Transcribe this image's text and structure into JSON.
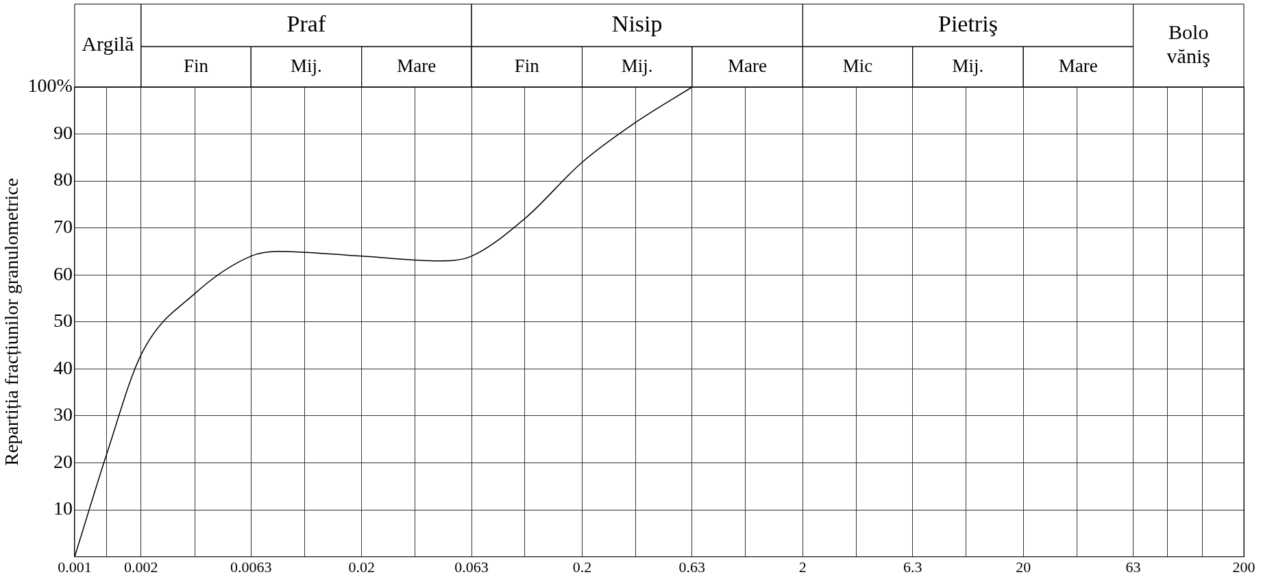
{
  "chart_data": {
    "type": "line",
    "ylabel": "Repartiția fracțiunilor granulometrice",
    "x": [
      0.001,
      0.0014,
      0.002,
      0.0035,
      0.0063,
      0.0083,
      0.02,
      0.045,
      0.063,
      0.11,
      0.2,
      0.35,
      0.63
    ],
    "values": [
      0,
      22,
      43,
      56,
      64,
      65,
      64,
      63,
      64,
      72,
      84,
      92.5,
      100
    ],
    "color": "#000000",
    "log": "x",
    "xlim": [
      0.001,
      200
    ],
    "xticks": [
      0.001,
      {
        "value": 0.0014,
        "label": null
      },
      0.002,
      {
        "value": 0.0035,
        "label": null
      },
      0.0063,
      {
        "value": 0.011,
        "label": null
      },
      0.02,
      {
        "value": 0.035,
        "label": null
      },
      0.063,
      {
        "value": 0.11,
        "label": null
      },
      0.2,
      {
        "value": 0.35,
        "label": null
      },
      0.63,
      {
        "value": 1.1,
        "label": null
      },
      2,
      {
        "value": 3.5,
        "label": null
      },
      6.3,
      {
        "value": 11,
        "label": null
      },
      20,
      {
        "value": 35,
        "label": null
      },
      63,
      {
        "value": 90,
        "label": null
      },
      {
        "value": 130,
        "label": null
      },
      200
    ],
    "ylim": [
      0,
      100
    ],
    "yticks": [
      10,
      20,
      30,
      40,
      50,
      60,
      70,
      80,
      90,
      {
        "value": 100,
        "label": "100%"
      }
    ],
    "grid": true,
    "marker": "none",
    "line_style": "solid",
    "annotations": [
      "Argilă",
      "Praf",
      "Nisip",
      "Pietriş",
      "Bolo\nvăniş",
      "Fin",
      "Mij.",
      "Mare",
      "Fin",
      "Mij.",
      "Mare",
      "Mic",
      "Mij.",
      "Mare"
    ]
  }
}
